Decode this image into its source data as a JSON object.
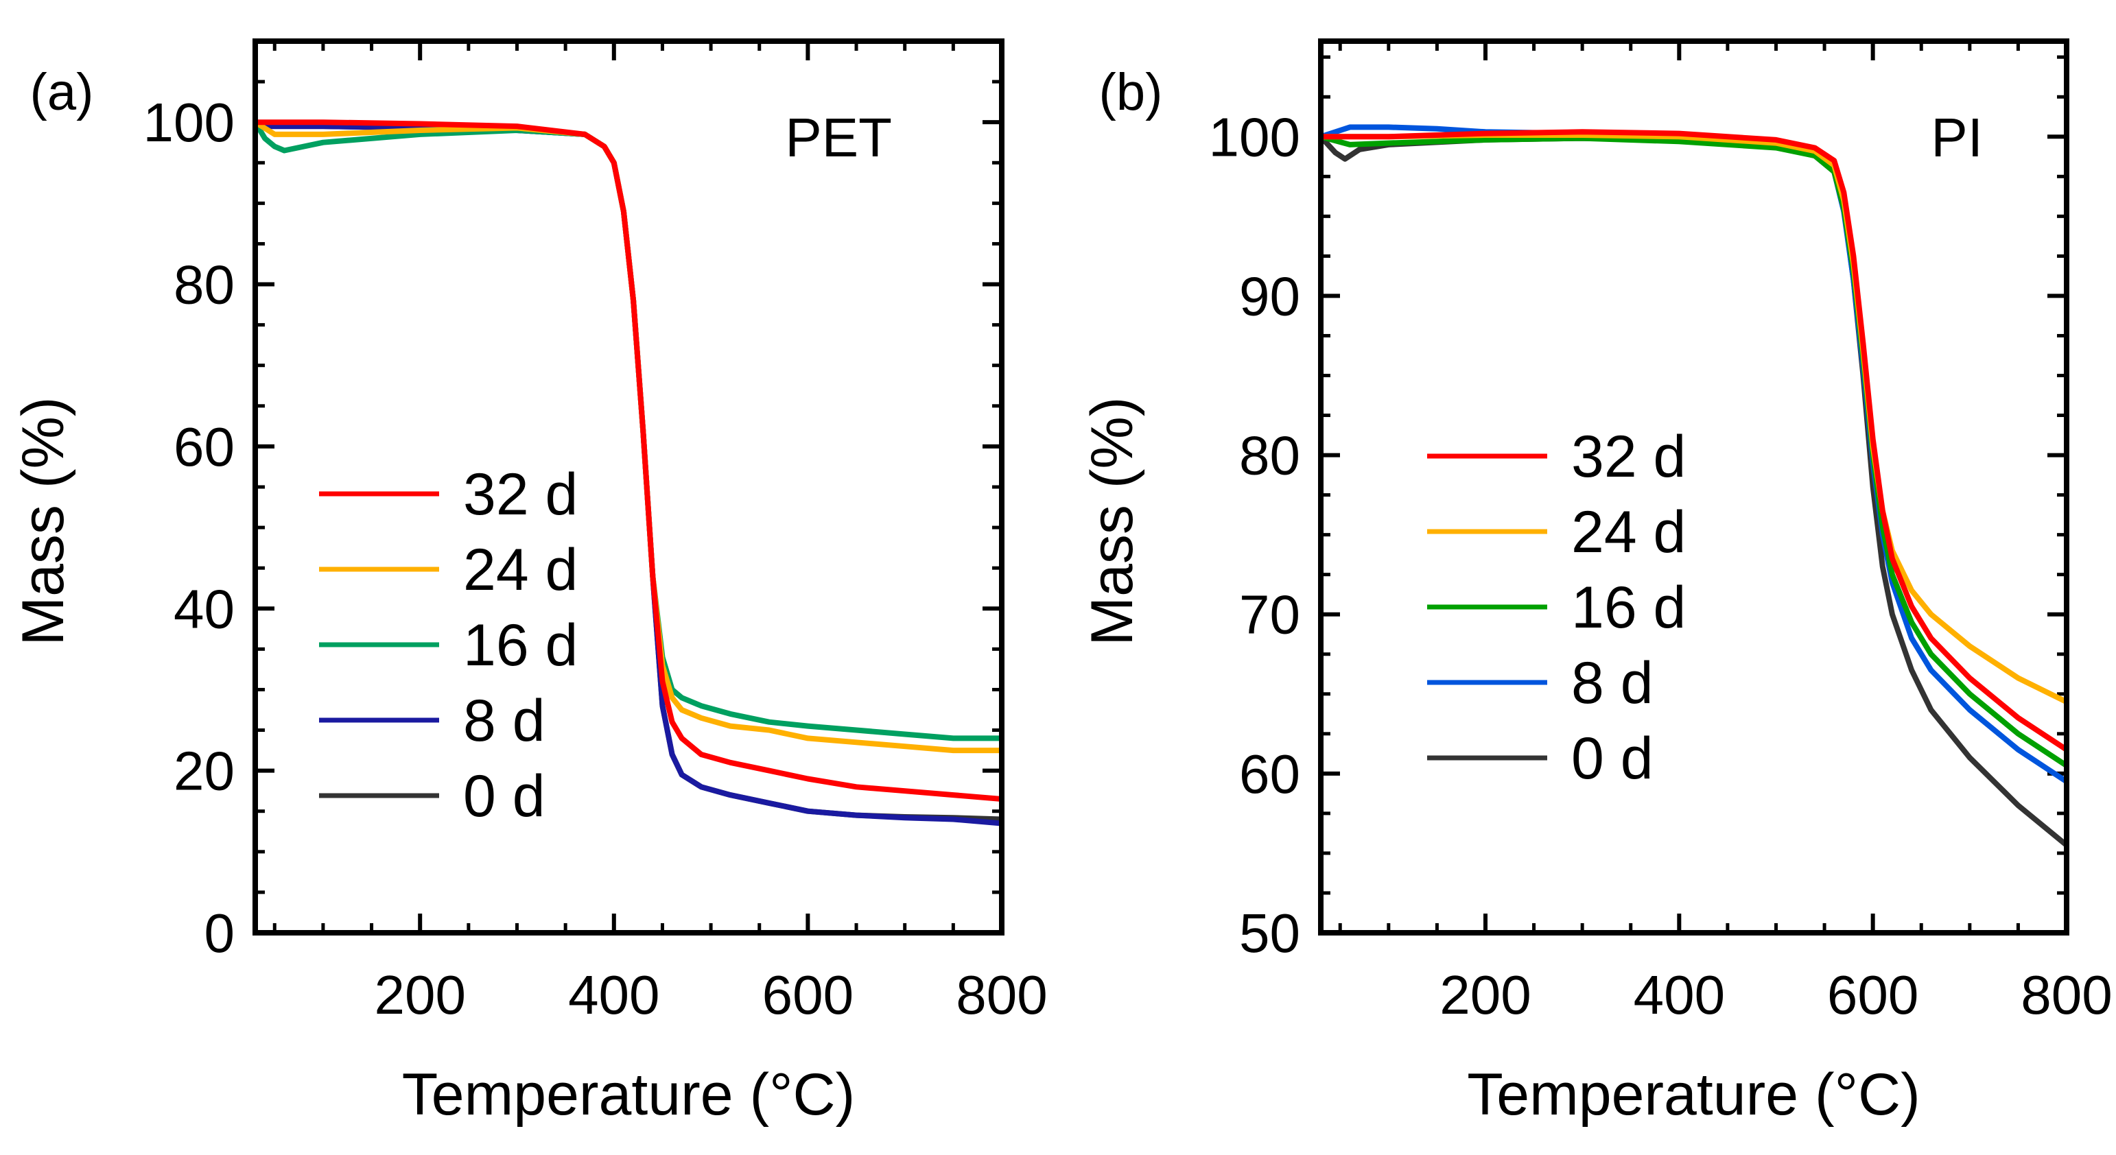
{
  "chart_data": [
    {
      "type": "line",
      "panel_label": "(a)",
      "title": "PET",
      "xlabel": "Temperature (°C)",
      "ylabel": "Mass (%)",
      "xlim": [
        30,
        800
      ],
      "ylim": [
        0,
        110
      ],
      "xticks": [
        200,
        400,
        600,
        800
      ],
      "xtick_labels": [
        "200",
        "400",
        "600",
        "800"
      ],
      "yticks": [
        0,
        20,
        40,
        60,
        80,
        100
      ],
      "ytick_labels": [
        "0",
        "20",
        "40",
        "60",
        "80",
        "100"
      ],
      "legend_position": "center-left",
      "series": [
        {
          "name": "32 d",
          "color": "#ff0000",
          "x": [
            30,
            100,
            200,
            300,
            370,
            390,
            400,
            410,
            420,
            430,
            440,
            450,
            460,
            470,
            490,
            520,
            560,
            600,
            650,
            700,
            750,
            800
          ],
          "y": [
            100,
            100,
            99.8,
            99.5,
            98.5,
            97,
            95,
            89,
            78,
            62,
            44,
            31,
            26,
            24,
            22,
            21,
            20,
            19,
            18,
            17.5,
            17,
            16.5
          ]
        },
        {
          "name": "24 d",
          "color": "#ffb000",
          "x": [
            30,
            50,
            100,
            200,
            300,
            370,
            390,
            400,
            410,
            420,
            430,
            440,
            450,
            460,
            470,
            490,
            520,
            560,
            600,
            650,
            700,
            750,
            800
          ],
          "y": [
            100,
            98.5,
            98.5,
            99,
            99.3,
            98.5,
            97,
            95,
            89,
            78,
            62,
            44,
            33,
            29,
            27.5,
            26.5,
            25.5,
            25,
            24,
            23.5,
            23,
            22.5,
            22.5
          ]
        },
        {
          "name": "16 d",
          "color": "#00a060",
          "x": [
            30,
            40,
            50,
            60,
            100,
            200,
            300,
            370,
            390,
            400,
            410,
            420,
            430,
            440,
            450,
            460,
            470,
            490,
            520,
            560,
            600,
            650,
            700,
            750,
            800
          ],
          "y": [
            100,
            98,
            97,
            96.5,
            97.5,
            98.5,
            99,
            98.5,
            97,
            95,
            89,
            78,
            62,
            44,
            34,
            30,
            29,
            28,
            27,
            26,
            25.5,
            25,
            24.5,
            24,
            24
          ]
        },
        {
          "name": "8 d",
          "color": "#1a1aa0",
          "x": [
            30,
            100,
            200,
            300,
            370,
            390,
            400,
            410,
            420,
            430,
            440,
            450,
            460,
            470,
            490,
            520,
            560,
            600,
            650,
            700,
            750,
            800
          ],
          "y": [
            99.5,
            99.5,
            99.3,
            99,
            98.5,
            97,
            95,
            89,
            78,
            62,
            44,
            28,
            22,
            19.5,
            18,
            17,
            16,
            15,
            14.5,
            14.2,
            14,
            13.5
          ]
        },
        {
          "name": "0 d",
          "color": "#333333",
          "x": [
            30,
            100,
            200,
            300,
            370,
            390,
            400,
            410,
            420,
            430,
            440,
            450,
            460,
            470,
            490,
            520,
            560,
            600,
            650,
            700,
            750,
            800
          ],
          "y": [
            99.5,
            99.5,
            99.3,
            99,
            98.5,
            97,
            95,
            89,
            78,
            62,
            44,
            28,
            22,
            19.5,
            18,
            17,
            16,
            15,
            14.5,
            14.3,
            14.2,
            14
          ]
        }
      ]
    },
    {
      "type": "line",
      "panel_label": "(b)",
      "title": "PI",
      "xlabel": "Temperature (°C)",
      "ylabel": "Mass (%)",
      "xlim": [
        30,
        800
      ],
      "ylim": [
        50,
        106
      ],
      "xticks": [
        200,
        400,
        600,
        800
      ],
      "xtick_labels": [
        "200",
        "400",
        "600",
        "800"
      ],
      "yticks": [
        50,
        60,
        70,
        80,
        90,
        100
      ],
      "ytick_labels": [
        "50",
        "60",
        "70",
        "80",
        "90",
        "100"
      ],
      "legend_position": "center-left",
      "series": [
        {
          "name": "32 d",
          "color": "#ff0000",
          "x": [
            30,
            60,
            100,
            200,
            300,
            400,
            500,
            540,
            560,
            570,
            580,
            590,
            600,
            610,
            620,
            640,
            660,
            700,
            750,
            800
          ],
          "y": [
            100,
            100,
            100,
            100.2,
            100.3,
            100.2,
            99.8,
            99.3,
            98.5,
            96.5,
            92.5,
            87,
            81,
            76.5,
            73.5,
            70.5,
            68.5,
            66,
            63.5,
            61.5
          ]
        },
        {
          "name": "24 d",
          "color": "#ffb000",
          "x": [
            30,
            60,
            100,
            200,
            300,
            400,
            500,
            540,
            560,
            570,
            580,
            590,
            600,
            610,
            620,
            640,
            660,
            700,
            750,
            800
          ],
          "y": [
            100,
            100,
            100,
            100.1,
            100.1,
            100,
            99.6,
            99.1,
            98.2,
            96,
            92,
            86.5,
            80.5,
            76.5,
            74,
            71.5,
            70,
            68,
            66,
            64.5
          ]
        },
        {
          "name": "16 d",
          "color": "#00a000",
          "x": [
            30,
            60,
            100,
            200,
            300,
            400,
            500,
            540,
            560,
            570,
            580,
            590,
            600,
            610,
            620,
            640,
            660,
            700,
            750,
            800
          ],
          "y": [
            100,
            99.5,
            99.6,
            99.8,
            99.9,
            99.7,
            99.3,
            98.8,
            97.8,
            95.5,
            91.5,
            86,
            80,
            75.5,
            72.5,
            69.5,
            67.5,
            65,
            62.5,
            60.5
          ]
        },
        {
          "name": "8 d",
          "color": "#0055dd",
          "x": [
            30,
            60,
            100,
            150,
            200,
            300,
            400,
            500,
            540,
            560,
            570,
            580,
            590,
            600,
            610,
            620,
            640,
            660,
            700,
            750,
            800
          ],
          "y": [
            100,
            100.6,
            100.6,
            100.5,
            100.3,
            100.2,
            100,
            99.6,
            99,
            97.8,
            95.3,
            91,
            85.5,
            79.5,
            75,
            72,
            68.5,
            66.5,
            64,
            61.5,
            59.5
          ]
        },
        {
          "name": "0 d",
          "color": "#333333",
          "x": [
            30,
            45,
            55,
            70,
            100,
            200,
            300,
            400,
            500,
            540,
            560,
            570,
            580,
            590,
            600,
            610,
            620,
            640,
            660,
            700,
            750,
            800
          ],
          "y": [
            100,
            99,
            98.6,
            99.2,
            99.5,
            99.8,
            99.9,
            99.8,
            99.4,
            98.8,
            97.8,
            95.5,
            91,
            85,
            78,
            73,
            70,
            66.5,
            64,
            61,
            58,
            55.5
          ]
        }
      ]
    }
  ]
}
